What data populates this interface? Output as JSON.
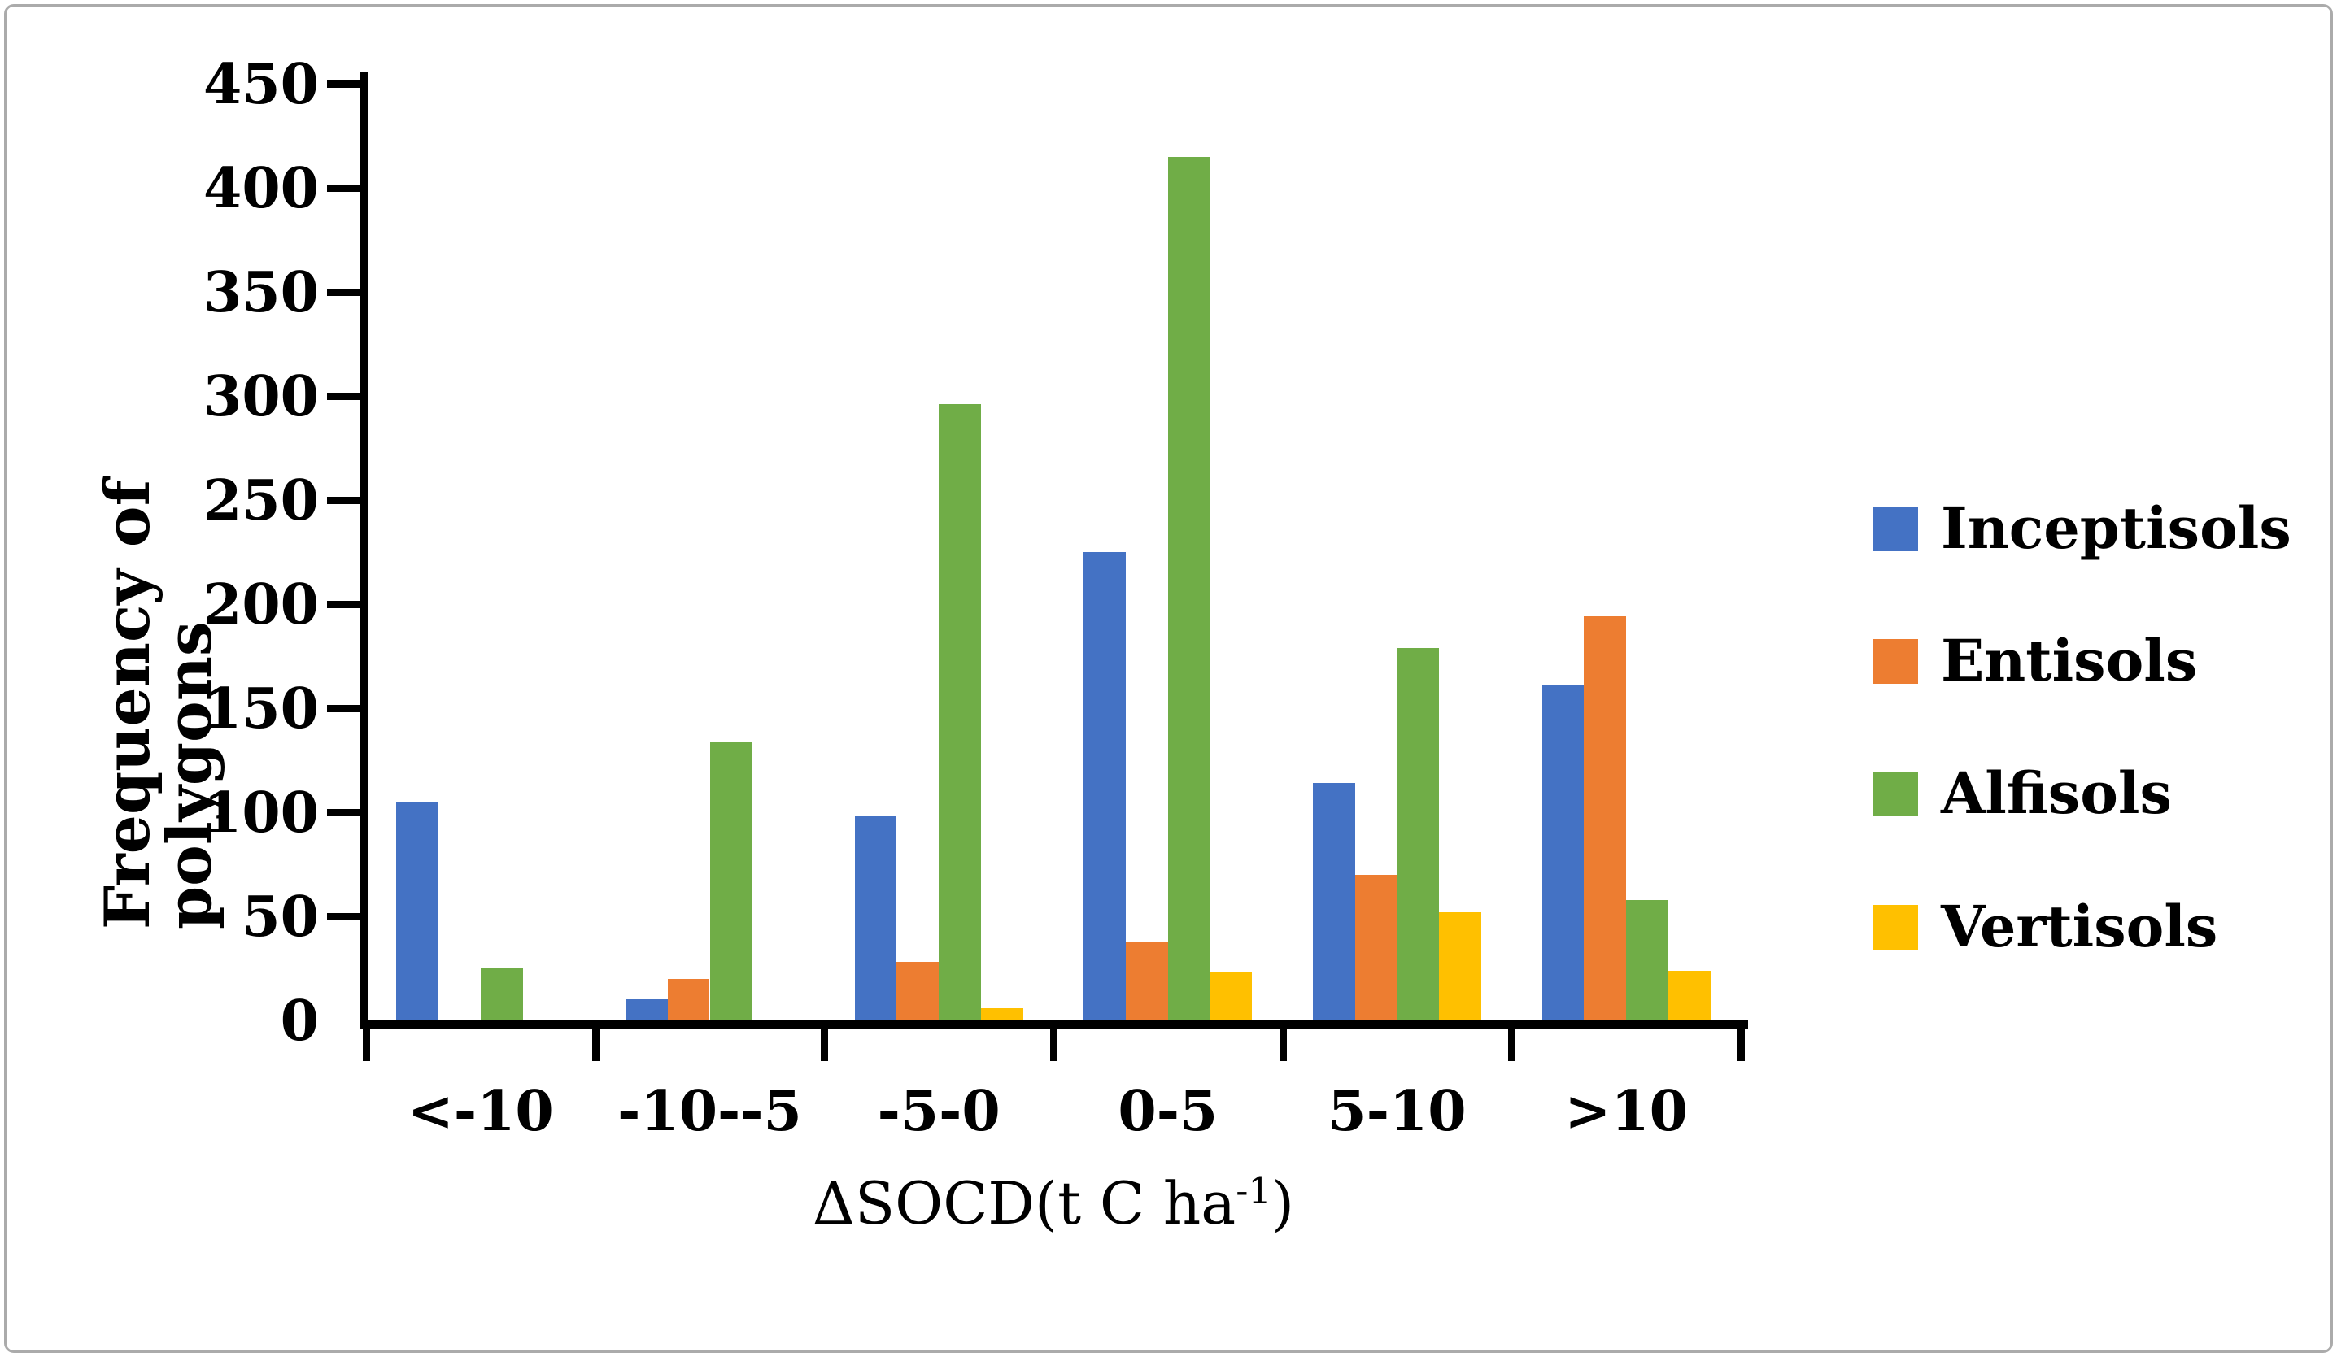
{
  "figure": {
    "background_color": "#ffffff",
    "border_color": "#ababab"
  },
  "chart_data": {
    "type": "bar",
    "title": "",
    "categories": [
      "<-10",
      "-10--5",
      "-5-0",
      "0-5",
      "5-10",
      ">10"
    ],
    "series": [
      {
        "name": "Inceptisols",
        "color": "#4472C4",
        "values": [
          105,
          10,
          98,
          225,
          114,
          161
        ]
      },
      {
        "name": "Entisols",
        "color": "#ED7D31",
        "values": [
          0,
          20,
          28,
          38,
          70,
          194
        ]
      },
      {
        "name": "Alfisols",
        "color": "#70AD47",
        "values": [
          25,
          134,
          296,
          415,
          179,
          58
        ]
      },
      {
        "name": "Vertisols",
        "color": "#FFC000",
        "values": [
          0,
          0,
          6,
          23,
          52,
          24
        ]
      }
    ],
    "xlabel_prefix": "ΔSOCD(t C ha",
    "xlabel_sup": "-1",
    "xlabel_suffix": ")",
    "ylabel": "Frequency of polygons",
    "ylim": [
      0,
      450
    ],
    "ytick_step": 50,
    "ytick_labels": [
      "0",
      "50",
      "100",
      "150",
      "200",
      "250",
      "300",
      "350",
      "400",
      "450"
    ],
    "grid": false,
    "legend_position": "right",
    "axis_color": "#000000",
    "text_color": "#000000"
  }
}
